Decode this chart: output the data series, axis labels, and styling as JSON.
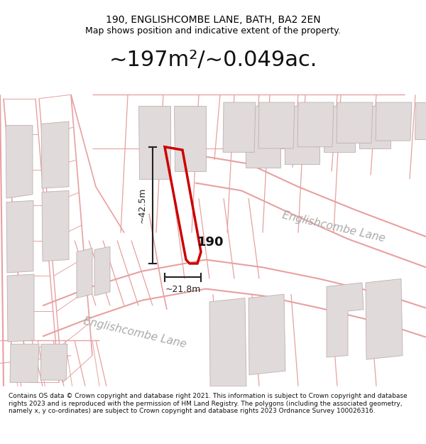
{
  "title": "190, ENGLISHCOMBE LANE, BATH, BA2 2EN",
  "subtitle": "Map shows position and indicative extent of the property.",
  "area_label": "~197m²/~0.049ac.",
  "property_number": "190",
  "dim_height": "~42.5m",
  "dim_width": "~21.8m",
  "street_label1": "Englishcombe Lane",
  "street_label2": "Englishcombe Lane",
  "footer": "Contains OS data © Crown copyright and database right 2021. This information is subject to Crown copyright and database rights 2023 and is reproduced with the permission of HM Land Registry. The polygons (including the associated geometry, namely x, y co-ordinates) are subject to Crown copyright and database rights 2023 Ordnance Survey 100026316.",
  "map_bg": "#fafafa",
  "plot_line_color": "#e8a0a0",
  "building_fill": "#e0dada",
  "building_edge": "#c0b0b0",
  "property_color": "#cc0000",
  "dim_color": "#222222",
  "street_color": "#aaaaaa",
  "title_fontsize": 10,
  "subtitle_fontsize": 9,
  "area_fontsize": 22,
  "street_fontsize": 11,
  "footer_fontsize": 6.5
}
